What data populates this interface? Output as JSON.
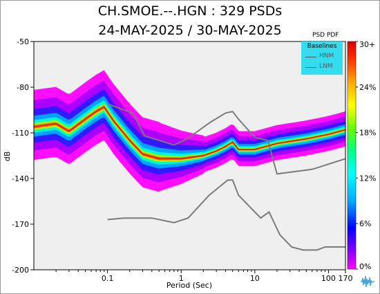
{
  "header": {
    "title": "CH.SMOE.--.HGN : 329 PSDs",
    "subtitle": "24-MAY-2025 / 30-MAY-2025"
  },
  "chart_data": {
    "type": "heatmap",
    "title": "CH.SMOE.--.HGN : 329 PSDs",
    "subtitle": "24-MAY-2025 / 30-MAY-2025",
    "xlabel": "Period (Sec)",
    "ylabel": "dB",
    "x_scale": "log",
    "xlim": [
      0.01,
      170
    ],
    "ylim": [
      -200,
      -50
    ],
    "x_ticks": [
      "0.1",
      "1",
      "10",
      "100",
      "170"
    ],
    "x_tick_values": [
      0.1,
      1,
      10,
      100,
      170
    ],
    "y_ticks": [
      "-50",
      "-80",
      "-110",
      "-140",
      "-170",
      "-200"
    ],
    "y_tick_values": [
      -50,
      -80,
      -110,
      -140,
      -170,
      -200
    ],
    "colorbar": {
      "title": "PSD PDF",
      "ticks": [
        "30+",
        "24%",
        "18%",
        "12%",
        "6%",
        "0%"
      ],
      "colors": [
        "#ff00ff",
        "#8a00ff",
        "#0000ff",
        "#00aaff",
        "#00ffff",
        "#00ff88",
        "#66ff00",
        "#ffff00",
        "#ffaa00",
        "#ff3300",
        "#dd0000"
      ]
    },
    "legend": {
      "title": "Baselines",
      "entries": [
        "HNM",
        "LNM"
      ],
      "placement": "top-right"
    },
    "series": [
      {
        "name": "HNM",
        "color": "#7a7a7a",
        "points": [
          [
            0.1,
            -91
          ],
          [
            0.22,
            -97
          ],
          [
            0.32,
            -112
          ],
          [
            0.8,
            -118
          ],
          [
            1.2,
            -114
          ],
          [
            2.5,
            -103
          ],
          [
            4.0,
            -97
          ],
          [
            5.0,
            -96
          ],
          [
            6.0,
            -101
          ],
          [
            10,
            -113
          ],
          [
            15,
            -115
          ],
          [
            20,
            -137
          ],
          [
            60,
            -134
          ],
          [
            170,
            -127
          ]
        ]
      },
      {
        "name": "LNM",
        "color": "#7a7a7a",
        "points": [
          [
            0.1,
            -167
          ],
          [
            0.17,
            -166
          ],
          [
            0.4,
            -166
          ],
          [
            0.8,
            -169
          ],
          [
            1.24,
            -166
          ],
          [
            2.4,
            -151
          ],
          [
            4.3,
            -141
          ],
          [
            5.0,
            -141
          ],
          [
            6.0,
            -151
          ],
          [
            10,
            -162
          ],
          [
            12,
            -166
          ],
          [
            15.6,
            -162
          ],
          [
            21.9,
            -177
          ],
          [
            31.6,
            -185
          ],
          [
            45,
            -187
          ],
          [
            70,
            -187
          ],
          [
            90,
            -185
          ],
          [
            170,
            -185
          ]
        ]
      },
      {
        "name": "mode",
        "color": "#dd2200",
        "points": [
          [
            0.01,
            -106
          ],
          [
            0.02,
            -104
          ],
          [
            0.03,
            -109
          ],
          [
            0.05,
            -101
          ],
          [
            0.07,
            -96
          ],
          [
            0.09,
            -93
          ],
          [
            0.12,
            -102
          ],
          [
            0.2,
            -115
          ],
          [
            0.3,
            -124
          ],
          [
            0.5,
            -127
          ],
          [
            1.0,
            -127
          ],
          [
            2.0,
            -125
          ],
          [
            3.0,
            -122
          ],
          [
            4.0,
            -119
          ],
          [
            5.0,
            -116
          ],
          [
            6.0,
            -121
          ],
          [
            8.0,
            -121
          ],
          [
            10,
            -121
          ],
          [
            20,
            -117
          ],
          [
            50,
            -114
          ],
          [
            100,
            -111
          ],
          [
            170,
            -108
          ]
        ]
      }
    ]
  }
}
